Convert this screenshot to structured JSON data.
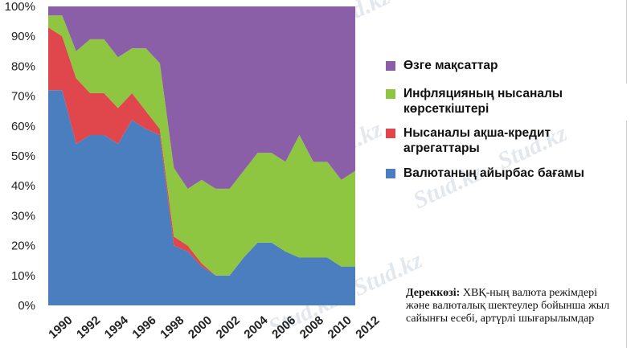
{
  "chart_data": {
    "type": "area",
    "stacked": true,
    "x": [
      1990,
      1991,
      1992,
      1993,
      1994,
      1995,
      1996,
      1997,
      1998,
      1999,
      2000,
      2001,
      2002,
      2003,
      2004,
      2005,
      2006,
      2007,
      2008,
      2009,
      2010,
      2011,
      2012
    ],
    "x_tick_labels": [
      "1990",
      "1992",
      "1994",
      "1996",
      "1998",
      "2000",
      "2002",
      "2004",
      "2006",
      "2008",
      "2010",
      "2012"
    ],
    "y_tick_labels": [
      "0%",
      "10%",
      "20%",
      "30%",
      "40%",
      "50%",
      "60%",
      "70%",
      "80%",
      "90%",
      "100%"
    ],
    "ylim": [
      0,
      100
    ],
    "grid": false,
    "legend_position": "right",
    "series": [
      {
        "name": "Валютаның айырбас бағамы",
        "color": "#4a7ebf",
        "values": [
          72,
          72,
          54,
          57,
          57,
          54,
          62,
          59,
          57,
          20,
          18,
          13,
          10,
          10,
          16,
          21,
          21,
          18,
          16,
          16,
          16,
          13,
          13
        ]
      },
      {
        "name": "Нысаналы ақша-кредит агрегаттары",
        "color": "#e0474c",
        "values": [
          21,
          18,
          22,
          14,
          14,
          12,
          9,
          6,
          2,
          3,
          2,
          1,
          0,
          0,
          0,
          0,
          0,
          0,
          0,
          0,
          0,
          0,
          0
        ]
      },
      {
        "name": "Инфляцияның нысаналы көрсеткіштері",
        "color": "#8ec641",
        "values": [
          4,
          7,
          9,
          18,
          18,
          17,
          15,
          21,
          22,
          23,
          19,
          28,
          29,
          29,
          29,
          30,
          30,
          30,
          41,
          32,
          32,
          29,
          32
        ]
      },
      {
        "name": "Өзге мақсаттар",
        "color": "#8b5fa8",
        "values": [
          3,
          3,
          15,
          11,
          11,
          17,
          14,
          14,
          19,
          54,
          61,
          58,
          61,
          61,
          55,
          49,
          49,
          52,
          43,
          52,
          52,
          58,
          55
        ]
      }
    ]
  },
  "legend": [
    {
      "label": "Өзге мақсаттар",
      "color": "#8b5fa8"
    },
    {
      "label": "Инфляцияның нысаналы көрсеткіштері",
      "color": "#8ec641"
    },
    {
      "label": "Нысаналы ақша-кредит агрегаттары",
      "color": "#e0474c"
    },
    {
      "label": "Валютаның айырбас бағамы",
      "color": "#4a7ebf"
    }
  ],
  "source": {
    "label": "Дереккөзі:",
    "text": "ХВҚ-ның валюта режімдері және валюталық шектеулер бойынша жыл сайынғы есебі, артүрлі шығарылымдар"
  },
  "watermark": {
    "text": "Stud.kz - Stud.kz"
  }
}
